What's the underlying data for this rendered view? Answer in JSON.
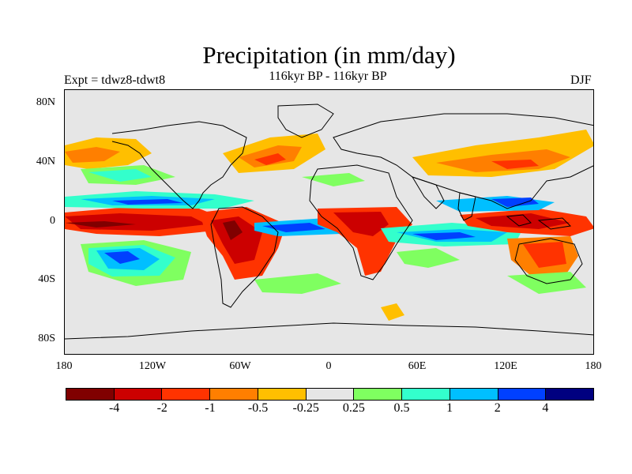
{
  "title": "Precipitation (in mm/day)",
  "experiment": "Expt = tdwz8-tdwt8",
  "subtitle": "116kyr BP - 116kyr BP",
  "season": "DJF",
  "y_ticks": [
    "80N",
    "40N",
    "0",
    "40S",
    "80S"
  ],
  "x_ticks": [
    "180",
    "120W",
    "60W",
    "0",
    "60E",
    "120E",
    "180"
  ],
  "colorbar": {
    "colors": [
      "#800000",
      "#cc0000",
      "#ff3300",
      "#ff7f00",
      "#ffbf00",
      "#e6e6e6",
      "#7fff60",
      "#33ffcc",
      "#00bfff",
      "#0040ff",
      "#000080"
    ],
    "labels": [
      "-4",
      "-2",
      "-1",
      "-0.5",
      "-0.25",
      "0.25",
      "0.5",
      "1",
      "2",
      "4"
    ]
  },
  "map_data": {
    "projection": "cylindrical-equidistant",
    "lon_range": [
      -180,
      180
    ],
    "lat_range": [
      -90,
      90
    ],
    "background_value_range": [
      -0.25,
      0.25
    ],
    "field": "precipitation difference (mm/day)"
  }
}
